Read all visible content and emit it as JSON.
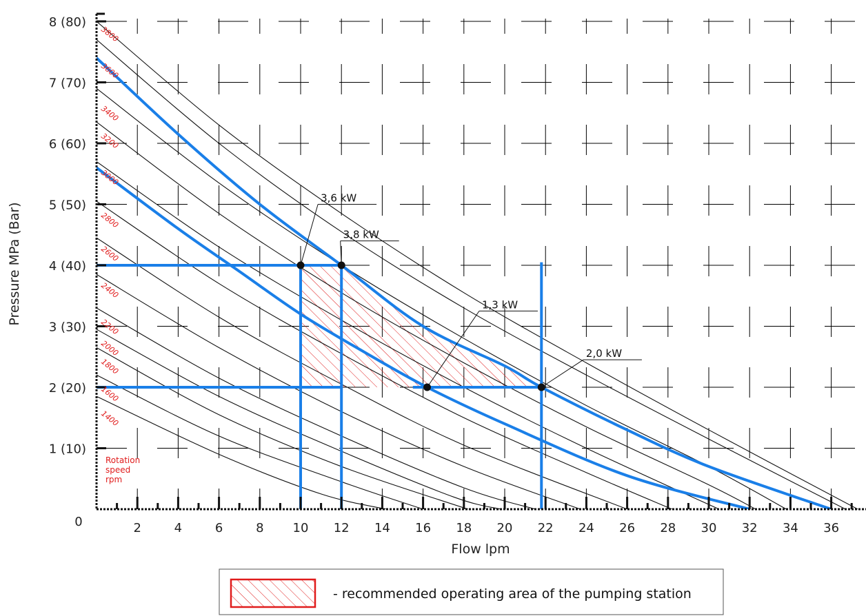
{
  "chart_data": {
    "type": "line",
    "title": "",
    "xlabel": "Flow lpm",
    "ylabel": "Pressure MPa (Bar)",
    "xlim": [
      0,
      37.5
    ],
    "ylim": [
      0,
      8
    ],
    "origin_label": "0",
    "x_ticks": [
      "2",
      "4",
      "6",
      "8",
      "10",
      "12",
      "14",
      "16",
      "18",
      "20",
      "22",
      "24",
      "26",
      "28",
      "30",
      "32",
      "34",
      "36"
    ],
    "y_ticks": [
      {
        "value": 1,
        "label": "1 (10)"
      },
      {
        "value": 2,
        "label": "2 (20)"
      },
      {
        "value": 3,
        "label": "3 (30)"
      },
      {
        "value": 4,
        "label": "4 (40)"
      },
      {
        "value": 5,
        "label": "5 (50)"
      },
      {
        "value": 6,
        "label": "6 (60)"
      },
      {
        "value": 7,
        "label": "7 (70)"
      },
      {
        "value": 8,
        "label": "8 (80)"
      }
    ],
    "rpm_curves": [
      {
        "rpm": "3800",
        "label_y": 7.9,
        "points": [
          [
            0,
            8.0
          ],
          [
            6,
            6.3
          ],
          [
            12,
            4.85
          ],
          [
            18,
            3.55
          ],
          [
            24,
            2.4
          ],
          [
            30,
            1.3
          ],
          [
            37.3,
            0
          ]
        ]
      },
      {
        "rpm": "3600",
        "label_y": 7.3,
        "points": [
          [
            0,
            7.7
          ],
          [
            6,
            6.0
          ],
          [
            12,
            4.55
          ],
          [
            18,
            3.3
          ],
          [
            24,
            2.2
          ],
          [
            30,
            1.15
          ],
          [
            36.7,
            0
          ]
        ]
      },
      {
        "rpm": "3400",
        "label_y": 6.6,
        "points": [
          [
            0,
            6.9
          ],
          [
            6,
            5.35
          ],
          [
            12,
            4.0
          ],
          [
            18,
            2.8
          ],
          [
            24,
            1.7
          ],
          [
            30,
            0.7
          ],
          [
            33.8,
            0
          ]
        ]
      },
      {
        "rpm": "3200",
        "label_y": 6.15,
        "points": [
          [
            0,
            6.35
          ],
          [
            6,
            4.85
          ],
          [
            12,
            3.55
          ],
          [
            18,
            2.4
          ],
          [
            24,
            1.35
          ],
          [
            30,
            0.4
          ],
          [
            32.3,
            0
          ]
        ]
      },
      {
        "rpm": "3000",
        "label_y": 5.55,
        "points": [
          [
            0,
            5.7
          ],
          [
            6,
            4.3
          ],
          [
            12,
            3.1
          ],
          [
            18,
            2.0
          ],
          [
            24,
            1.0
          ],
          [
            30.5,
            0
          ]
        ]
      },
      {
        "rpm": "2800",
        "label_y": 4.85,
        "points": [
          [
            0,
            5.05
          ],
          [
            6,
            3.7
          ],
          [
            12,
            2.55
          ],
          [
            18,
            1.5
          ],
          [
            24,
            0.6
          ],
          [
            28.2,
            0
          ]
        ]
      },
      {
        "rpm": "2600",
        "label_y": 4.3,
        "points": [
          [
            0,
            4.45
          ],
          [
            6,
            3.15
          ],
          [
            12,
            2.05
          ],
          [
            18,
            1.05
          ],
          [
            26.0,
            0
          ]
        ]
      },
      {
        "rpm": "2400",
        "label_y": 3.7,
        "points": [
          [
            0,
            3.85
          ],
          [
            6,
            2.65
          ],
          [
            12,
            1.6
          ],
          [
            18,
            0.7
          ],
          [
            23.7,
            0
          ]
        ]
      },
      {
        "rpm": "2200",
        "label_y": 3.1,
        "points": [
          [
            0,
            3.3
          ],
          [
            6,
            2.15
          ],
          [
            12,
            1.2
          ],
          [
            18,
            0.35
          ],
          [
            21.5,
            0
          ]
        ]
      },
      {
        "rpm": "2000",
        "label_y": 2.75,
        "points": [
          [
            0,
            2.95
          ],
          [
            6,
            1.85
          ],
          [
            12,
            0.95
          ],
          [
            17.5,
            0.2
          ],
          [
            19.8,
            0
          ]
        ]
      },
      {
        "rpm": "1800",
        "label_y": 2.45,
        "points": [
          [
            0,
            2.65
          ],
          [
            6,
            1.55
          ],
          [
            12,
            0.7
          ],
          [
            18.2,
            0
          ]
        ]
      },
      {
        "rpm": "1600",
        "label_y": 2.0,
        "points": [
          [
            0,
            2.2
          ],
          [
            6,
            1.2
          ],
          [
            12,
            0.45
          ],
          [
            16.0,
            0
          ]
        ]
      },
      {
        "rpm": "1400",
        "label_y": 1.6,
        "points": [
          [
            0,
            1.85
          ],
          [
            6,
            0.9
          ],
          [
            11,
            0.25
          ],
          [
            14.2,
            0
          ]
        ]
      }
    ],
    "power_curves": [
      {
        "name": "3,8 kW",
        "points": [
          [
            0,
            7.4
          ],
          [
            4,
            6.15
          ],
          [
            8,
            5.0
          ],
          [
            12,
            4.0
          ],
          [
            16,
            3.0
          ],
          [
            20,
            2.35
          ],
          [
            21.8,
            2.0
          ],
          [
            26,
            1.3
          ],
          [
            30,
            0.7
          ],
          [
            36,
            0
          ]
        ]
      },
      {
        "name": "3,6 kW",
        "points": [
          [
            0,
            5.6
          ],
          [
            4,
            4.6
          ],
          [
            7,
            3.9
          ],
          [
            10,
            3.2
          ],
          [
            13,
            2.6
          ],
          [
            16.2,
            2.0
          ],
          [
            20,
            1.4
          ],
          [
            26,
            0.55
          ],
          [
            32,
            0
          ]
        ]
      }
    ],
    "reference_lines": {
      "horizontal": [
        {
          "y": 4,
          "x_to": 12
        },
        {
          "y": 2,
          "x_to": 12
        },
        {
          "y": 2,
          "x_from": 15.5,
          "x_to": 21.8
        }
      ],
      "vertical": [
        10,
        12,
        21.8
      ]
    },
    "operating_points": [
      {
        "label": "3,6 kW",
        "x": 10,
        "y": 4,
        "label_x": 12.2,
        "label_y": 5.0
      },
      {
        "label": "3,8 kW",
        "x": 12,
        "y": 4,
        "label_x": 13.3,
        "label_y": 4.4
      },
      {
        "label": "1,3 kW",
        "x": 16.2,
        "y": 2,
        "label_x": 20.1,
        "label_y": 3.25
      },
      {
        "label": "2,0 kW",
        "x": 21.8,
        "y": 2,
        "label_x": 25.2,
        "label_y": 2.45
      }
    ],
    "recommended_area": [
      [
        10,
        4
      ],
      [
        12,
        4
      ],
      [
        16,
        3.0
      ],
      [
        20,
        2.35
      ],
      [
        21.8,
        2.0
      ],
      [
        10,
        2.0
      ]
    ],
    "rpm_note": [
      "Rotation",
      "speed",
      "rpm"
    ],
    "legend_text": "- recommended operating area of the pumping station",
    "colors": {
      "blue": "#1a7fe8",
      "red": "#e01b1b",
      "black": "#111111",
      "grid": "#000000"
    }
  }
}
